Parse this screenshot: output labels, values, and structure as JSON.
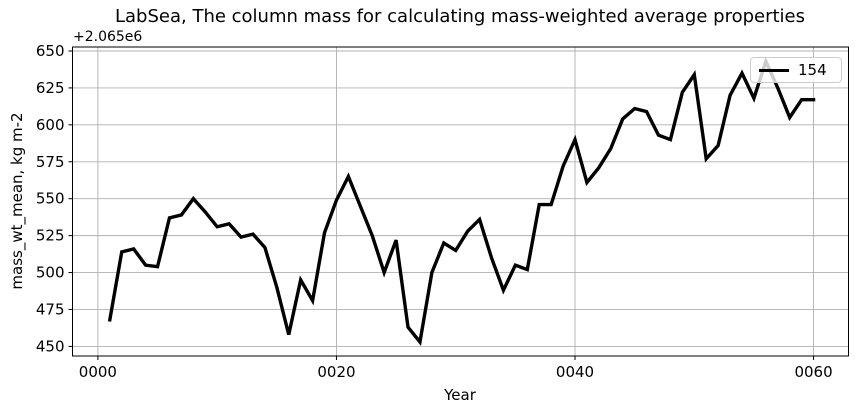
{
  "chart_data": {
    "type": "line",
    "title": "LabSea, The column mass for calculating mass-weighted average properties",
    "offset_text": "+2.065e6",
    "xlabel": "Year",
    "ylabel": "mass_wt_mean, kg m-2",
    "legend": {
      "label": "154",
      "position": "upper-right"
    },
    "x": [
      1,
      2,
      3,
      4,
      5,
      6,
      7,
      8,
      9,
      10,
      11,
      12,
      13,
      14,
      15,
      16,
      17,
      18,
      19,
      20,
      21,
      22,
      23,
      24,
      25,
      26,
      27,
      28,
      29,
      30,
      31,
      32,
      33,
      34,
      35,
      36,
      37,
      38,
      39,
      40,
      41,
      42,
      43,
      44,
      45,
      46,
      47,
      48,
      49,
      50,
      51,
      52,
      53,
      54,
      55,
      56,
      57,
      58,
      59,
      60
    ],
    "series": [
      {
        "name": "154",
        "values": [
          468,
          514,
          516,
          505,
          504,
          537,
          539,
          550,
          541,
          531,
          533,
          524,
          526,
          517,
          490,
          458,
          495,
          481,
          527,
          549,
          565,
          545,
          525,
          500,
          522,
          463,
          453,
          500,
          520,
          515,
          528,
          536,
          510,
          488,
          505,
          502,
          546,
          546,
          572,
          590,
          561,
          571,
          584,
          604,
          611,
          609,
          593,
          590,
          622,
          634,
          577,
          586,
          620,
          635,
          618,
          643,
          625,
          605,
          617,
          617
        ]
      }
    ],
    "xlim": [
      -2.13,
      62.93
    ],
    "ylim": [
      443.5,
      652.7
    ],
    "xticks": {
      "positions": [
        0,
        20,
        40,
        60
      ],
      "labels": [
        "0000",
        "0020",
        "0040",
        "0060"
      ]
    },
    "yticks": [
      450,
      475,
      500,
      525,
      550,
      575,
      600,
      625,
      650
    ],
    "grid": true,
    "legend_location": "upper right",
    "colors": {
      "line": "#000000",
      "grid": "#b0b0b0",
      "spine": "#000000",
      "legend_border": "#cccccc",
      "text": "#000000"
    },
    "line_width": 3.4
  }
}
